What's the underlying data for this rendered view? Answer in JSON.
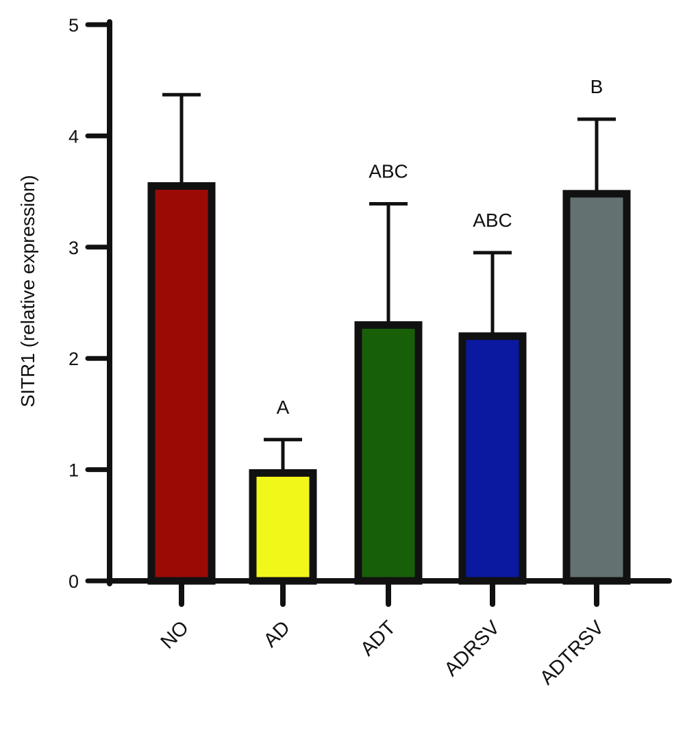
{
  "chart_data": {
    "type": "bar",
    "title": "",
    "xlabel": "",
    "ylabel": "SITR1 (relative expression)",
    "ylim": [
      0,
      5
    ],
    "yticks": [
      0,
      1,
      2,
      3,
      4,
      5
    ],
    "grid": false,
    "legend": "none",
    "categories": [
      "NO",
      "AD",
      "ADT",
      "ADRSV",
      "ADTRSV"
    ],
    "values": [
      3.55,
      0.97,
      2.3,
      2.2,
      3.48
    ],
    "error_upper": [
      4.37,
      1.27,
      3.39,
      2.95,
      4.15
    ],
    "significance_labels": [
      "",
      "A",
      "ABC",
      "ABC",
      "B"
    ],
    "colors": [
      "#9b0a05",
      "#f2f71a",
      "#186008",
      "#0a19a0",
      "#637170"
    ],
    "axis_color": "#111111"
  }
}
